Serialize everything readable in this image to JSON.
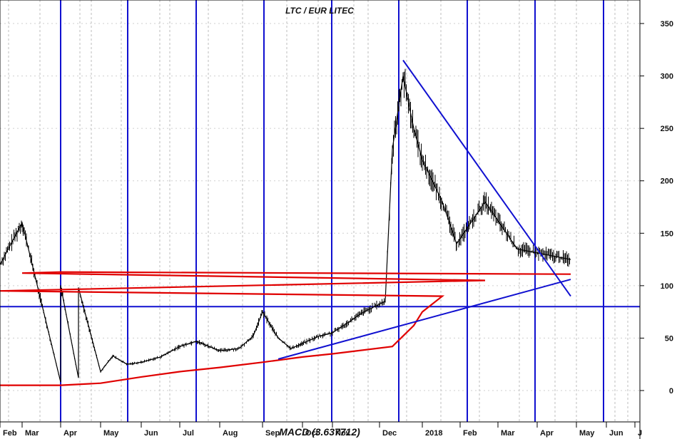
{
  "chart_data": {
    "type": "line",
    "title": "LTC / EUR LITEC",
    "subtitle": "",
    "xlabel": "",
    "ylabel": "",
    "ylim": [
      -30,
      370
    ],
    "y_ticks": [
      0,
      50,
      100,
      150,
      200,
      250,
      300,
      350
    ],
    "x_ticks": [
      "Feb",
      "Mar",
      "Apr",
      "May",
      "Jun",
      "Jul",
      "Aug",
      "Sep",
      "Oct",
      "Nov",
      "Dec",
      "2018",
      "Feb",
      "Mar",
      "Apr",
      "May",
      "Jun",
      "J"
    ],
    "grid": true,
    "legend": "none",
    "footer_label": "MACD (3.637712)",
    "reference_level": 80,
    "series": [
      {
        "color": "#000000",
        "style": "bars",
        "points": [
          {
            "x": "Apr",
            "y": 8
          },
          {
            "x": "Apr-mid",
            "y": 12
          },
          {
            "x": "May",
            "y": 18
          },
          {
            "x": "May-mid",
            "y": 33
          },
          {
            "x": "May-late",
            "y": 25
          },
          {
            "x": "Jun",
            "y": 27
          },
          {
            "x": "Jun-mid",
            "y": 32
          },
          {
            "x": "Jul",
            "y": 42
          },
          {
            "x": "Jul-mid",
            "y": 47
          },
          {
            "x": "Aug",
            "y": 38
          },
          {
            "x": "Aug-mid",
            "y": 40
          },
          {
            "x": "Aug-late",
            "y": 52
          },
          {
            "x": "Sep",
            "y": 75
          },
          {
            "x": "Sep-mid",
            "y": 50
          },
          {
            "x": "Sep-late",
            "y": 40
          },
          {
            "x": "Oct",
            "y": 45
          },
          {
            "x": "Oct-mid",
            "y": 52
          },
          {
            "x": "Nov",
            "y": 55
          },
          {
            "x": "Nov-mid",
            "y": 75
          },
          {
            "x": "Nov-late",
            "y": 85
          },
          {
            "x": "Dec",
            "y": 230
          },
          {
            "x": "Dec-mid",
            "y": 300
          },
          {
            "x": "Dec-late",
            "y": 250
          },
          {
            "x": "2018",
            "y": 220
          },
          {
            "x": "2018-mid",
            "y": 180
          },
          {
            "x": "Feb-early",
            "y": 140
          },
          {
            "x": "Feb",
            "y": 120
          },
          {
            "x": "Feb-mid",
            "y": 180
          },
          {
            "x": "Mar",
            "y": 160
          },
          {
            "x": "Mar-mid",
            "y": 135
          },
          {
            "x": "Apr",
            "y": 100
          },
          {
            "x": "Apr-mid",
            "y": 98
          },
          {
            "x": "Apr-late",
            "y": 125
          }
        ]
      },
      {
        "color": "#e00000",
        "style": "line",
        "points": [
          {
            "x": "Feb",
            "y": 5
          },
          {
            "x": "Apr",
            "y": 5
          },
          {
            "x": "May",
            "y": 7
          },
          {
            "x": "Jun",
            "y": 13
          },
          {
            "x": "Jul",
            "y": 18
          },
          {
            "x": "Aug",
            "y": 22
          },
          {
            "x": "Sep",
            "y": 27
          },
          {
            "x": "Oct",
            "y": 32
          },
          {
            "x": "Nov",
            "y": 35
          },
          {
            "x": "Dec",
            "y": 42
          },
          {
            "x": "Dec-late",
            "y": 62
          },
          {
            "x": "2018",
            "y": 75
          },
          {
            "x": "2018-mid",
            "y": 90
          },
          {
            "x": "Feb",
            "y": 95
          },
          {
            "x": "Feb-mid",
            "y": 105
          },
          {
            "x": "Mar",
            "y": 112
          },
          {
            "x": "Apr",
            "y": 113
          },
          {
            "x": "Apr-late",
            "y": 111
          }
        ]
      }
    ],
    "trendlines": [
      {
        "color": "#1010d0",
        "from": {
          "x": "Dec-mid",
          "y": 315
        },
        "to": {
          "x": "Apr-late",
          "y": 90
        }
      },
      {
        "color": "#1010d0",
        "from": {
          "x": "Sep-mid",
          "y": 30
        },
        "to": {
          "x": "Apr-late",
          "y": 106
        }
      }
    ]
  }
}
